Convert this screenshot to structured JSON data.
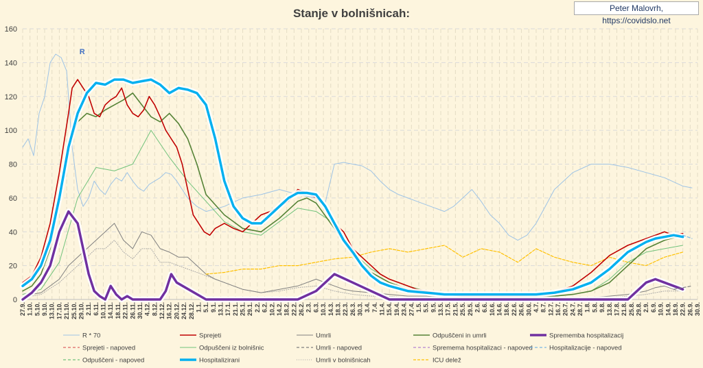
{
  "header": {
    "credit": "Peter Malovrh, https://covidslo.net"
  },
  "chart_data": {
    "type": "line",
    "title": "Stanje v bolnišnicah:",
    "xlabel": "",
    "ylabel": "",
    "ylim": [
      0,
      160
    ],
    "yticks": [
      0,
      20,
      40,
      60,
      80,
      100,
      120,
      140,
      160
    ],
    "grid": true,
    "legend_position": "bottom",
    "x_day_range": [
      0,
      368
    ],
    "x_tick_labels": [
      "27.9.",
      "1.10.",
      "5.10.",
      "9.10.",
      "13.10.",
      "17.10.",
      "21.10.",
      "25.10.",
      "29.10.",
      "2.11.",
      "6.11.",
      "10.11.",
      "14.11.",
      "18.11.",
      "22.11.",
      "26.11.",
      "30.11.",
      "4.12.",
      "8.12.",
      "12.12.",
      "16.12.",
      "20.12.",
      "24.12.",
      "28.12.",
      "1.1.",
      "5.1.",
      "9.1.",
      "13.1.",
      "17.1.",
      "21.1.",
      "25.1.",
      "29.1.",
      "2.2.",
      "6.2.",
      "10.2.",
      "14.2.",
      "18.2.",
      "22.2.",
      "26.2.",
      "2.3.",
      "6.3.",
      "10.3.",
      "14.3.",
      "18.3.",
      "22.3.",
      "26.3.",
      "30.3.",
      "3.4.",
      "7.4.",
      "11.4.",
      "15.4.",
      "19.4.",
      "23.4.",
      "27.4.",
      "1.5.",
      "5.5.",
      "9.5.",
      "13.5.",
      "17.5.",
      "21.5.",
      "25.5.",
      "29.5.",
      "2.6.",
      "6.6.",
      "10.6.",
      "14.6.",
      "18.6.",
      "22.6.",
      "26.6.",
      "30.6.",
      "4.7.",
      "8.7.",
      "12.7.",
      "16.7.",
      "20.7.",
      "24.7.",
      "28.7.",
      "1.8.",
      "5.8.",
      "9.8.",
      "13.8.",
      "17.8.",
      "21.8.",
      "25.8.",
      "29.8.",
      "2.9.",
      "6.9.",
      "10.9.",
      "14.9.",
      "18.9.",
      "22.9.",
      "26.9.",
      "30.9."
    ],
    "annotation": "R",
    "series": [
      {
        "name": "R * 70",
        "color": "#9dc3e6",
        "width": 1,
        "dash": "",
        "x": [
          0,
          3,
          6,
          9,
          12,
          15,
          18,
          21,
          24,
          27,
          30,
          33,
          36,
          39,
          42,
          45,
          48,
          51,
          54,
          57,
          60,
          63,
          66,
          69,
          72,
          75,
          78,
          81,
          84,
          87,
          90,
          95,
          100,
          110,
          120,
          130,
          140,
          150,
          160,
          165,
          170,
          175,
          180,
          185,
          190,
          195,
          200,
          205,
          210,
          215,
          220,
          225,
          230,
          235,
          240,
          245,
          250,
          255,
          260,
          265,
          270,
          275,
          280,
          285,
          290,
          300,
          310,
          320,
          330,
          340,
          350,
          360,
          365
        ],
        "y": [
          90,
          95,
          85,
          110,
          120,
          140,
          145,
          143,
          135,
          90,
          65,
          55,
          60,
          70,
          65,
          62,
          68,
          72,
          70,
          75,
          70,
          66,
          64,
          68,
          70,
          72,
          75,
          74,
          70,
          65,
          60,
          55,
          52,
          55,
          60,
          62,
          65,
          62,
          60,
          57,
          80,
          81,
          80,
          79,
          76,
          70,
          65,
          62,
          60,
          58,
          56,
          54,
          52,
          55,
          60,
          65,
          58,
          50,
          45,
          38,
          35,
          38,
          45,
          55,
          65,
          75,
          80,
          80,
          78,
          75,
          72,
          67,
          66
        ]
      },
      {
        "name": "Sprejeti",
        "color": "#c00000",
        "width": 1.6,
        "dash": "",
        "x": [
          0,
          5,
          10,
          15,
          20,
          25,
          27,
          30,
          33,
          36,
          39,
          42,
          45,
          48,
          51,
          54,
          57,
          60,
          63,
          66,
          69,
          72,
          75,
          78,
          81,
          84,
          87,
          90,
          93,
          96,
          99,
          102,
          105,
          110,
          115,
          120,
          125,
          130,
          135,
          140,
          145,
          150,
          155,
          160,
          165,
          170,
          175,
          180,
          185,
          190,
          195,
          200,
          205,
          210,
          215,
          220,
          225,
          230,
          240,
          250,
          260,
          270,
          280,
          290,
          300,
          310,
          320,
          330,
          340,
          345,
          350,
          355,
          360
        ],
        "y": [
          10,
          14,
          25,
          45,
          75,
          110,
          125,
          130,
          125,
          120,
          110,
          108,
          115,
          118,
          120,
          125,
          115,
          110,
          108,
          112,
          120,
          115,
          108,
          100,
          95,
          90,
          80,
          65,
          50,
          45,
          40,
          38,
          42,
          45,
          42,
          40,
          45,
          50,
          52,
          55,
          58,
          65,
          63,
          60,
          55,
          45,
          40,
          30,
          25,
          20,
          15,
          12,
          10,
          8,
          6,
          5,
          4,
          3,
          2,
          2,
          2,
          2,
          3,
          4,
          8,
          16,
          26,
          32,
          36,
          38,
          40,
          38,
          39
        ]
      },
      {
        "name": "Umrli",
        "color": "#7f7f7f",
        "width": 1,
        "dash": "",
        "x": [
          0,
          10,
          20,
          25,
          30,
          35,
          40,
          45,
          50,
          55,
          60,
          65,
          70,
          75,
          80,
          85,
          90,
          95,
          100,
          105,
          110,
          115,
          120,
          130,
          140,
          150,
          160,
          165,
          170,
          175,
          180,
          190,
          200,
          210,
          220,
          230,
          240,
          250,
          260,
          270,
          280,
          290,
          300,
          310,
          320,
          330,
          340,
          345,
          350,
          355,
          360
        ],
        "y": [
          2,
          4,
          12,
          20,
          25,
          30,
          35,
          40,
          45,
          35,
          30,
          40,
          38,
          30,
          28,
          25,
          25,
          20,
          15,
          12,
          10,
          8,
          6,
          4,
          6,
          8,
          12,
          10,
          8,
          6,
          5,
          4,
          3,
          2,
          2,
          1,
          1,
          1,
          1,
          1,
          1,
          1,
          1,
          1,
          2,
          3,
          5,
          7,
          8,
          6,
          5
        ]
      },
      {
        "name": "Odpuščeni in umrli",
        "color": "#548235",
        "width": 1.6,
        "dash": "",
        "x": [
          0,
          5,
          10,
          15,
          20,
          25,
          30,
          35,
          40,
          45,
          50,
          55,
          60,
          65,
          70,
          75,
          80,
          85,
          90,
          95,
          100,
          110,
          120,
          130,
          140,
          150,
          155,
          160,
          170,
          180,
          190,
          200,
          210,
          220,
          230,
          240,
          250,
          260,
          270,
          280,
          290,
          300,
          310,
          320,
          330,
          340,
          350,
          360
        ],
        "y": [
          5,
          8,
          15,
          30,
          60,
          90,
          105,
          110,
          108,
          112,
          115,
          118,
          122,
          115,
          108,
          105,
          110,
          104,
          95,
          80,
          62,
          50,
          42,
          40,
          48,
          58,
          60,
          57,
          42,
          26,
          16,
          10,
          6,
          4,
          3,
          2,
          2,
          2,
          2,
          2,
          2,
          3,
          5,
          10,
          20,
          30,
          35,
          38
        ]
      },
      {
        "name": "Sprememba hospitalizacij",
        "color": "#7030a0",
        "width": 3.5,
        "dash": "",
        "x": [
          0,
          5,
          10,
          15,
          20,
          25,
          30,
          33,
          36,
          39,
          42,
          45,
          48,
          51,
          54,
          57,
          60,
          63,
          66,
          69,
          72,
          75,
          78,
          81,
          84,
          100,
          105,
          110,
          115,
          120,
          130,
          140,
          150,
          160,
          170,
          180,
          190,
          200,
          210,
          220,
          230,
          240,
          250,
          260,
          270,
          280,
          290,
          300,
          310,
          320,
          330,
          340,
          345,
          350,
          355,
          360
        ],
        "y": [
          0,
          4,
          10,
          20,
          40,
          52,
          45,
          30,
          15,
          5,
          2,
          0,
          8,
          3,
          0,
          2,
          0,
          0,
          0,
          0,
          0,
          0,
          5,
          15,
          10,
          0,
          0,
          0,
          0,
          0,
          0,
          0,
          0,
          5,
          15,
          10,
          5,
          0,
          0,
          0,
          0,
          0,
          0,
          0,
          0,
          0,
          0,
          0,
          0,
          0,
          0,
          10,
          12,
          10,
          8,
          6
        ]
      },
      {
        "name": "Sprejeti - napoved",
        "color": "#e06666",
        "width": 1.2,
        "dash": "4 3",
        "x": [],
        "y": []
      },
      {
        "name": "Odpuščeni iz bolnišnic",
        "color": "#70c27a",
        "width": 1,
        "dash": "",
        "x": [
          0,
          10,
          20,
          30,
          40,
          50,
          60,
          70,
          80,
          90,
          100,
          110,
          120,
          130,
          140,
          150,
          160,
          170,
          180,
          190,
          200,
          210,
          220,
          230,
          240,
          250,
          260,
          270,
          280,
          290,
          300,
          310,
          320,
          330,
          340,
          350,
          360
        ],
        "y": [
          3,
          6,
          22,
          60,
          78,
          76,
          80,
          100,
          84,
          70,
          58,
          46,
          40,
          38,
          46,
          54,
          52,
          45,
          28,
          18,
          12,
          8,
          5,
          3,
          2,
          2,
          2,
          2,
          2,
          2,
          3,
          5,
          12,
          22,
          28,
          30,
          32
        ]
      },
      {
        "name": "Umrli - napoved",
        "color": "#7f7f7f",
        "width": 1.2,
        "dash": "4 3",
        "x": [
          355,
          360,
          365
        ],
        "y": [
          6,
          7,
          8
        ]
      },
      {
        "name": "Spremema hospitalizaci - napoved",
        "color": "#b482d0",
        "width": 1.2,
        "dash": "4 3",
        "x": [],
        "y": []
      },
      {
        "name": "Hospitalizacije - napoved",
        "color": "#79b6e6",
        "width": 1.2,
        "dash": "4 3",
        "x": [
          360,
          365
        ],
        "y": [
          38,
          36
        ]
      },
      {
        "name": "Odpuščeni - napoved",
        "color": "#70c27a",
        "width": 1.2,
        "dash": "4 3",
        "x": [],
        "y": []
      },
      {
        "name": "Hospitalizirani",
        "color": "#00b0f0",
        "width": 3.5,
        "dash": "",
        "x": [
          0,
          5,
          10,
          15,
          20,
          25,
          30,
          35,
          40,
          45,
          50,
          55,
          60,
          65,
          70,
          75,
          80,
          85,
          90,
          95,
          100,
          105,
          110,
          115,
          120,
          125,
          130,
          135,
          140,
          145,
          150,
          155,
          160,
          165,
          170,
          175,
          180,
          185,
          190,
          195,
          200,
          210,
          220,
          230,
          240,
          250,
          260,
          270,
          280,
          290,
          300,
          310,
          320,
          330,
          340,
          345,
          350,
          355,
          360
        ],
        "y": [
          8,
          12,
          20,
          35,
          60,
          90,
          110,
          122,
          128,
          127,
          130,
          130,
          128,
          129,
          130,
          127,
          122,
          125,
          124,
          122,
          115,
          95,
          70,
          55,
          48,
          45,
          45,
          50,
          55,
          60,
          63,
          63,
          62,
          55,
          45,
          35,
          28,
          20,
          14,
          10,
          8,
          5,
          4,
          3,
          3,
          3,
          3,
          3,
          3,
          4,
          6,
          10,
          18,
          28,
          34,
          36,
          37,
          38,
          37
        ]
      },
      {
        "name": "Umrli v bolnišnicah",
        "color": "#a6a6a6",
        "width": 1,
        "dash": "1 2",
        "x": [
          0,
          10,
          20,
          25,
          30,
          35,
          40,
          45,
          50,
          55,
          60,
          65,
          70,
          75,
          80,
          90,
          100,
          110,
          120,
          130,
          140,
          150,
          160,
          170,
          180,
          190,
          200,
          210,
          220,
          230,
          240,
          250,
          260,
          270,
          280,
          290,
          300,
          310,
          320,
          330,
          340,
          350,
          360
        ],
        "y": [
          1,
          3,
          10,
          15,
          20,
          25,
          30,
          30,
          35,
          28,
          24,
          30,
          30,
          22,
          22,
          18,
          14,
          10,
          6,
          4,
          5,
          7,
          8,
          5,
          3,
          2,
          2,
          1,
          1,
          1,
          1,
          1,
          1,
          1,
          1,
          1,
          1,
          1,
          1,
          2,
          3,
          5,
          5
        ]
      },
      {
        "name": "ICU delež",
        "color": "#ffc000",
        "width": 1.2,
        "dash": "4 2",
        "x": [
          100,
          110,
          120,
          130,
          140,
          150,
          160,
          170,
          180,
          190,
          200,
          210,
          220,
          230,
          240,
          250,
          260,
          270,
          280,
          290,
          300,
          310,
          320,
          330,
          340,
          350,
          360
        ],
        "y": [
          15,
          16,
          18,
          18,
          20,
          20,
          22,
          24,
          25,
          28,
          30,
          28,
          30,
          32,
          25,
          30,
          28,
          22,
          30,
          25,
          22,
          20,
          25,
          22,
          20,
          25,
          28
        ]
      }
    ]
  }
}
